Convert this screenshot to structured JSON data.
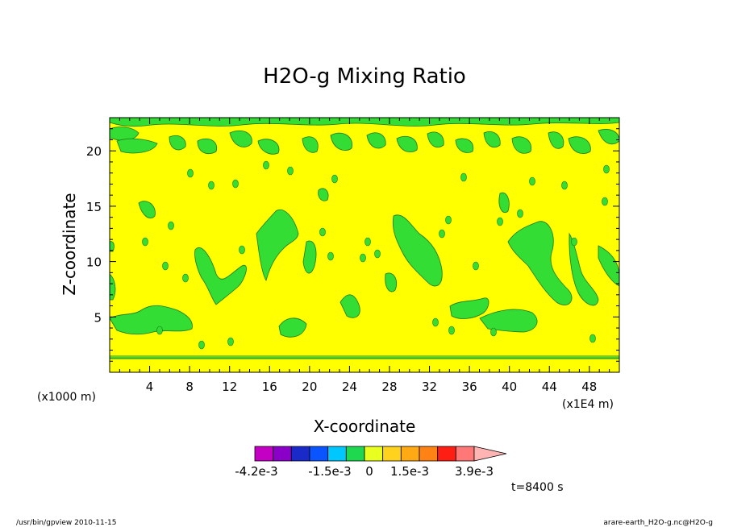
{
  "chart_data": {
    "type": "heatmap",
    "title": "H2O-g Mixing Ratio",
    "xlabel": "X-coordinate",
    "ylabel": "Z-coordinate",
    "x_unit": "(x1E4 m)",
    "y_unit": "(x1000 m)",
    "xlim": [
      0,
      51
    ],
    "ylim": [
      0,
      23
    ],
    "x_ticks": [
      "4",
      "8",
      "12",
      "16",
      "20",
      "24",
      "28",
      "32",
      "36",
      "40",
      "44",
      "48"
    ],
    "x_tick_values": [
      4,
      8,
      12,
      16,
      20,
      24,
      28,
      32,
      36,
      40,
      44,
      48
    ],
    "y_ticks": [
      "5",
      "10",
      "15",
      "20"
    ],
    "y_tick_values": [
      5,
      10,
      15,
      20
    ],
    "background_level_color": "#ffff00",
    "anomaly_level_color": "#33dd33",
    "green_regions_approx": [
      {
        "x": 2.5,
        "z": 5.0,
        "note": "low-level band"
      },
      {
        "x": 9.5,
        "z": 9.0
      },
      {
        "x": 15.0,
        "z": 11.5
      },
      {
        "x": 20.0,
        "z": 12.0
      },
      {
        "x": 30.5,
        "z": 9.5
      },
      {
        "x": 36.0,
        "z": 5.5
      },
      {
        "x": 44.0,
        "z": 11.0
      },
      {
        "x": 48.5,
        "z": 8.0
      },
      {
        "x": 25.5,
        "z": 19.5,
        "note": "upper band z≈19-22"
      }
    ],
    "colorbar": {
      "colors": [
        "#c400c4",
        "#8a00c8",
        "#1a2ac8",
        "#0a55ff",
        "#00c8ff",
        "#20d850",
        "#e8ff20",
        "#ffd21e",
        "#ffaa14",
        "#ff8214",
        "#ff1e14",
        "#ff7878",
        "#ffb4b4"
      ],
      "labels": [
        "-4.2e-3",
        "-1.5e-3",
        "0",
        "1.5e-3",
        "3.9e-3"
      ]
    },
    "time_label": "t=8400 s"
  },
  "footer": {
    "left": "/usr/bin/gpview   2010-11-15",
    "right": "arare-earth_H2O-g.nc@H2O-g"
  }
}
